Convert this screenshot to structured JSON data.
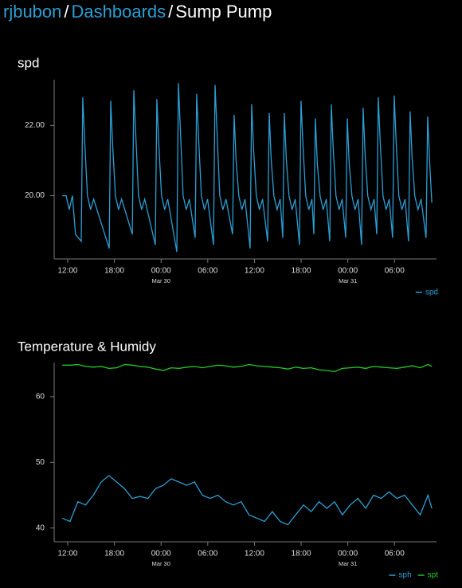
{
  "breadcrumb": {
    "items": [
      "rjbubon",
      "Dashboards",
      "Sump Pump"
    ],
    "separator": "/"
  },
  "chart_data": [
    {
      "type": "line",
      "title": "spd",
      "legend": "bottom-right",
      "xlim": [
        10.26,
        59.4
      ],
      "ylim": [
        18.2,
        23.3
      ],
      "xticks": [
        {
          "value": 12,
          "label": "12:00"
        },
        {
          "value": 18,
          "label": "18:00"
        },
        {
          "value": 24,
          "label": "00:00",
          "date": "Mar 30"
        },
        {
          "value": 30,
          "label": "06:00"
        },
        {
          "value": 36,
          "label": "12:00"
        },
        {
          "value": 42,
          "label": "18:00"
        },
        {
          "value": 48,
          "label": "00:00",
          "date": "Mar 31"
        },
        {
          "value": 54,
          "label": "06:00"
        }
      ],
      "yticks": [
        {
          "value": 20,
          "label": "20.00"
        },
        {
          "value": 22,
          "label": "22.00"
        }
      ],
      "x": [
        11.3,
        11.8,
        12.2,
        12.6,
        13.0,
        13.74,
        13.94,
        14.19,
        14.54,
        14.94,
        15.34,
        17.33,
        17.53,
        17.78,
        18.13,
        18.53,
        18.93,
        20.3,
        20.5,
        20.75,
        21.1,
        21.5,
        21.9,
        23.26,
        23.46,
        23.71,
        24.06,
        24.46,
        24.86,
        26.03,
        26.23,
        26.48,
        26.83,
        27.23,
        27.63,
        28.38,
        28.58,
        28.83,
        29.18,
        29.58,
        29.98,
        30.74,
        30.94,
        31.19,
        31.54,
        31.94,
        32.34,
        33.19,
        33.39,
        33.64,
        33.99,
        34.39,
        34.79,
        35.44,
        35.64,
        35.89,
        36.24,
        36.64,
        37.04,
        37.7,
        37.9,
        38.15,
        38.5,
        38.9,
        39.3,
        39.64,
        39.84,
        40.09,
        40.44,
        40.84,
        41.24,
        41.79,
        41.99,
        42.24,
        42.59,
        42.99,
        43.39,
        43.63,
        43.83,
        44.08,
        44.43,
        44.83,
        45.23,
        45.68,
        45.88,
        46.13,
        46.48,
        46.88,
        47.28,
        47.73,
        47.93,
        48.18,
        48.53,
        48.93,
        49.33,
        49.77,
        49.97,
        50.22,
        50.57,
        50.97,
        51.37,
        51.72,
        51.92,
        52.17,
        52.52,
        52.92,
        53.32,
        53.76,
        53.96,
        54.21,
        54.56,
        54.96,
        55.36,
        55.81,
        56.01,
        56.26,
        56.61,
        57.01,
        57.41,
        58.06,
        58.26,
        58.51,
        58.8
      ],
      "series": [
        {
          "name": "spd",
          "color": "#2a9fd6",
          "values": [
            20.0,
            20.0,
            19.6,
            20.0,
            18.9,
            18.7,
            22.8,
            21.5,
            20.0,
            19.6,
            19.9,
            18.5,
            22.7,
            21.4,
            20.0,
            19.6,
            19.9,
            18.9,
            23.0,
            21.7,
            20.0,
            19.6,
            19.9,
            18.6,
            22.75,
            21.45,
            20.0,
            19.6,
            19.9,
            18.4,
            23.2,
            21.9,
            20.0,
            19.6,
            19.9,
            18.8,
            22.9,
            21.6,
            20.0,
            19.6,
            19.9,
            18.6,
            23.15,
            21.85,
            20.0,
            19.6,
            19.9,
            18.9,
            22.3,
            21.0,
            20.0,
            19.6,
            19.9,
            18.5,
            22.6,
            21.3,
            20.0,
            19.6,
            19.9,
            18.7,
            22.35,
            21.05,
            20.0,
            19.6,
            19.9,
            18.8,
            22.35,
            21.05,
            20.0,
            19.6,
            19.9,
            18.6,
            22.7,
            21.4,
            20.0,
            19.6,
            19.9,
            18.9,
            22.2,
            20.9,
            20.0,
            19.6,
            19.9,
            18.7,
            22.6,
            21.3,
            20.0,
            19.6,
            19.9,
            18.8,
            22.2,
            20.9,
            20.0,
            19.6,
            19.9,
            18.6,
            22.5,
            21.2,
            20.0,
            19.6,
            19.9,
            18.9,
            22.8,
            21.5,
            20.0,
            19.6,
            19.9,
            18.8,
            22.85,
            21.55,
            20.0,
            19.6,
            19.9,
            18.7,
            22.4,
            21.1,
            20.0,
            19.6,
            19.9,
            18.8,
            22.25,
            21.0,
            19.8
          ]
        }
      ]
    },
    {
      "type": "line",
      "title": "Temperature & Humidy",
      "legend": "bottom-right",
      "xlim": [
        10.26,
        59.4
      ],
      "ylim": [
        37.9,
        65.2
      ],
      "xticks": [
        {
          "value": 12,
          "label": "12:00"
        },
        {
          "value": 18,
          "label": "18:00"
        },
        {
          "value": 24,
          "label": "00:00",
          "date": "Mar 30"
        },
        {
          "value": 30,
          "label": "06:00"
        },
        {
          "value": 36,
          "label": "12:00"
        },
        {
          "value": 42,
          "label": "18:00"
        },
        {
          "value": 48,
          "label": "00:00",
          "date": "Mar 31"
        },
        {
          "value": 54,
          "label": "06:00"
        }
      ],
      "yticks": [
        40,
        50,
        60
      ],
      "x": [
        11.3,
        12.3,
        13.3,
        14.3,
        15.3,
        16.3,
        17.3,
        18.3,
        19.3,
        20.3,
        21.3,
        22.3,
        23.3,
        24.3,
        25.3,
        26.3,
        27.3,
        28.3,
        29.3,
        30.3,
        31.3,
        32.3,
        33.3,
        34.3,
        35.3,
        36.3,
        37.3,
        38.3,
        39.3,
        40.3,
        41.3,
        42.3,
        43.3,
        44.3,
        45.3,
        46.3,
        47.3,
        48.3,
        49.3,
        50.3,
        51.3,
        52.3,
        53.3,
        54.3,
        55.3,
        56.3,
        57.3,
        58.3,
        58.8
      ],
      "series": [
        {
          "name": "sph",
          "color": "#2a9fd6",
          "values": [
            41.5,
            41,
            44,
            43.5,
            45,
            47,
            48,
            47,
            46,
            44.5,
            44.8,
            44.5,
            46,
            46.5,
            47.5,
            47,
            46.5,
            47,
            45,
            44.5,
            45,
            44,
            43.5,
            44,
            42,
            41.5,
            41,
            42.5,
            41,
            40.5,
            42,
            43.5,
            42.5,
            44,
            43,
            44,
            42,
            43.5,
            44.5,
            43,
            45,
            44.5,
            45.5,
            44.5,
            45,
            43.5,
            42,
            45,
            43
          ]
        },
        {
          "name": "spt",
          "color": "#22cc22",
          "values": [
            64.8,
            64.8,
            64.9,
            64.6,
            64.5,
            64.6,
            64.3,
            64.4,
            64.9,
            64.8,
            64.6,
            64.5,
            64.2,
            64.0,
            64.4,
            64.3,
            64.5,
            64.6,
            64.4,
            64.6,
            64.8,
            64.7,
            64.5,
            64.6,
            64.9,
            64.7,
            64.6,
            64.5,
            64.4,
            64.2,
            64.5,
            64.3,
            64.4,
            64.1,
            64.0,
            63.8,
            64.3,
            64.4,
            64.5,
            64.3,
            64.6,
            64.5,
            64.4,
            64.3,
            64.5,
            64.7,
            64.4,
            64.9,
            64.6
          ]
        }
      ]
    }
  ]
}
